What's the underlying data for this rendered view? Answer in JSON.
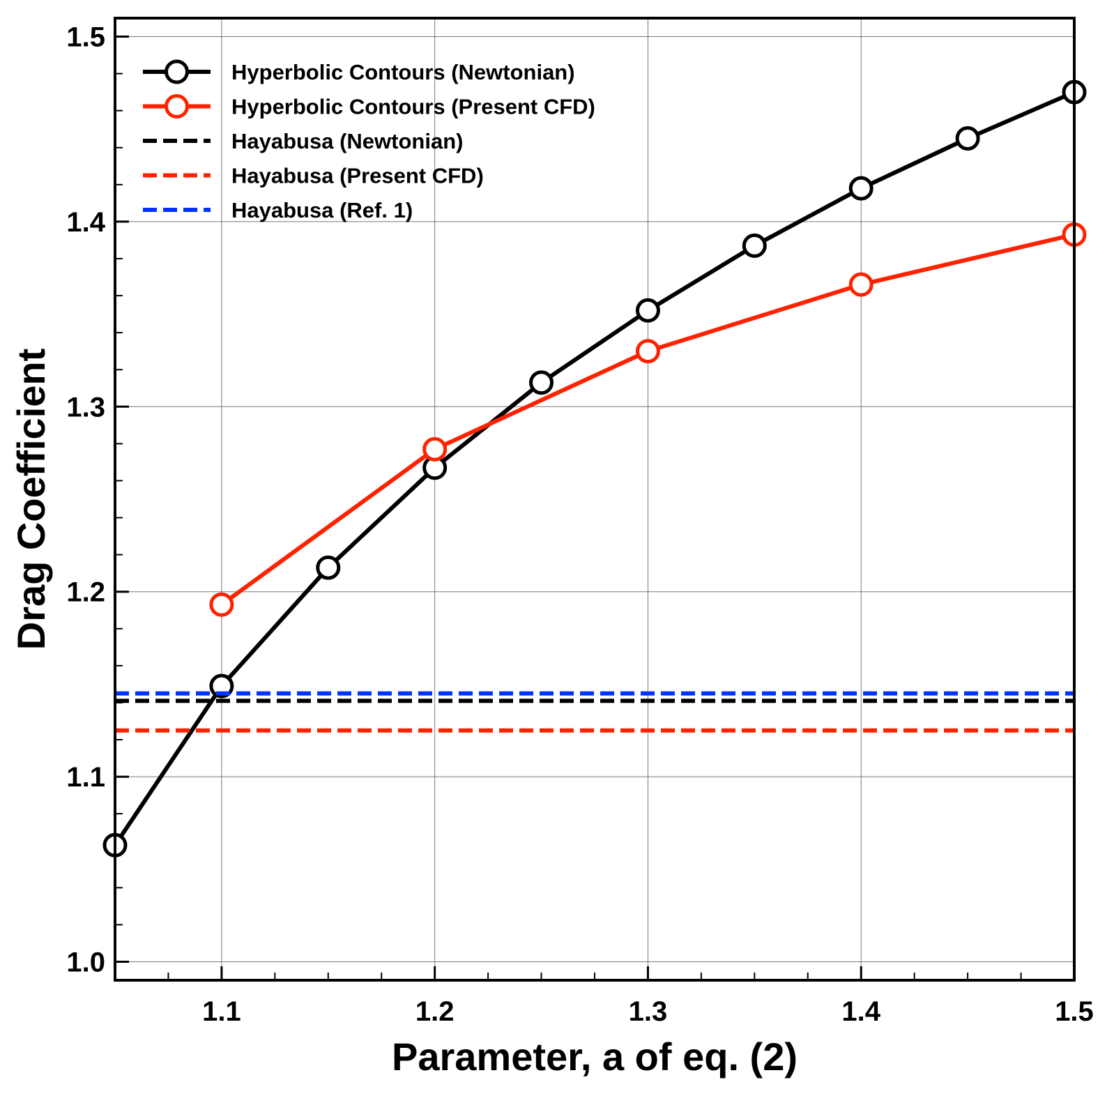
{
  "chart_data": {
    "type": "line",
    "title": "",
    "xlabel": "Parameter, a of eq. (2)",
    "ylabel": "Drag Coefficient",
    "xlim": [
      1.05,
      1.5
    ],
    "ylim": [
      0.99,
      1.51
    ],
    "xticks": [
      1.1,
      1.2,
      1.3,
      1.4,
      1.5
    ],
    "xtick_labels": [
      "1.1",
      "1.2",
      "1.3",
      "1.4",
      "1.5"
    ],
    "yticks": [
      1.0,
      1.1,
      1.2,
      1.3,
      1.4,
      1.5
    ],
    "ytick_labels": [
      "1.0",
      "1.1",
      "1.2",
      "1.3",
      "1.4",
      "1.5"
    ],
    "grid": true,
    "legend_position": "top-left",
    "series": [
      {
        "name": "Hyperbolic Contours (Newtonian)",
        "color": "#000000",
        "style": "solid-marker",
        "x": [
          1.05,
          1.1,
          1.15,
          1.2,
          1.25,
          1.3,
          1.35,
          1.4,
          1.45,
          1.5
        ],
        "y": [
          1.063,
          1.149,
          1.213,
          1.267,
          1.313,
          1.352,
          1.387,
          1.418,
          1.445,
          1.47
        ]
      },
      {
        "name": "Hyperbolic Contours (Present CFD)",
        "color": "#ff2200",
        "style": "solid-marker",
        "x": [
          1.1,
          1.2,
          1.3,
          1.4,
          1.5
        ],
        "y": [
          1.193,
          1.277,
          1.33,
          1.366,
          1.393
        ]
      },
      {
        "name": "Hayabusa (Newtonian)",
        "color": "#000000",
        "style": "dashed",
        "x": [
          1.05,
          1.5
        ],
        "y": [
          1.141,
          1.141
        ]
      },
      {
        "name": "Hayabusa (Present CFD)",
        "color": "#ff2200",
        "style": "dashed",
        "x": [
          1.05,
          1.5
        ],
        "y": [
          1.125,
          1.125
        ]
      },
      {
        "name": "Hayabusa (Ref. 1)",
        "color": "#0033ff",
        "style": "dashed",
        "x": [
          1.05,
          1.5
        ],
        "y": [
          1.145,
          1.145
        ]
      }
    ]
  }
}
